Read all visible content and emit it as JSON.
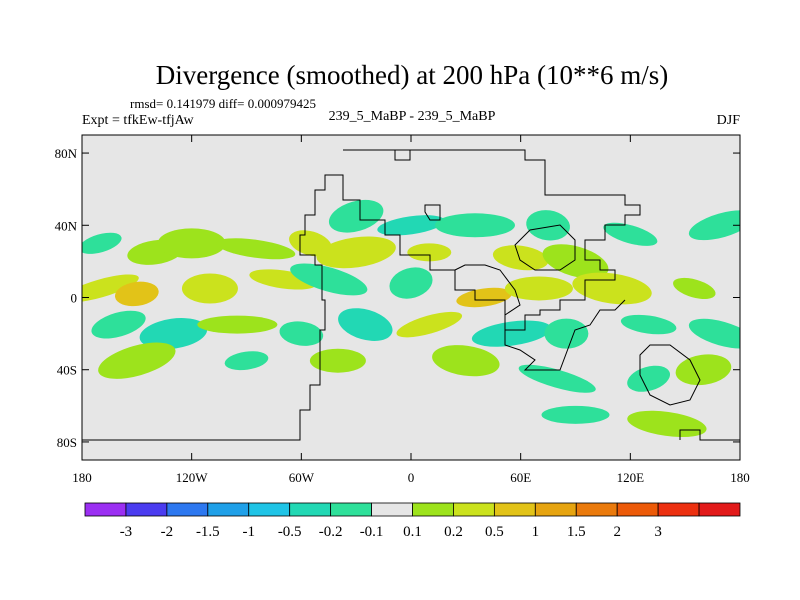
{
  "chart_data": {
    "type": "heatmap",
    "title": "Divergence (smoothed) at 200 hPa (10**6 m/s)",
    "stats_text": "rmsd= 0.141979 diff= 0.000979425",
    "subtitle_left": "Expt = tfkEw-tfjAw",
    "subtitle_center": "239_5_MaBP - 239_5_MaBP",
    "subtitle_right": "DJF",
    "xlim": [
      -180,
      180
    ],
    "ylim": [
      -90,
      90
    ],
    "x_ticks": [
      {
        "value": -180,
        "label": "180"
      },
      {
        "value": -120,
        "label": "120W"
      },
      {
        "value": -60,
        "label": "60W"
      },
      {
        "value": 0,
        "label": "0"
      },
      {
        "value": 60,
        "label": "60E"
      },
      {
        "value": 120,
        "label": "120E"
      },
      {
        "value": 180,
        "label": "180"
      }
    ],
    "y_ticks": [
      {
        "value": 80,
        "label": "80N"
      },
      {
        "value": 40,
        "label": "40N"
      },
      {
        "value": 0,
        "label": "0"
      },
      {
        "value": -40,
        "label": "40S"
      },
      {
        "value": -80,
        "label": "80S"
      }
    ],
    "colorbar": {
      "colors": [
        "#9b2ff2",
        "#4b3cf0",
        "#2d78f0",
        "#1fa0e8",
        "#1fc4e6",
        "#22d8b4",
        "#2ee09a",
        "#e6e6e6",
        "#9de31c",
        "#cbe21d",
        "#e2c318",
        "#e6a410",
        "#ea7a0c",
        "#ec5a08",
        "#ec3010",
        "#e21a1a"
      ],
      "labels": [
        "-3",
        "-2",
        "-1.5",
        "-1",
        "-0.5",
        "-0.2",
        "-0.1",
        "0.1",
        "0.2",
        "0.5",
        "1",
        "1.5",
        "2",
        "3"
      ]
    },
    "field_cells": [
      {
        "lon": -170,
        "lat": 30,
        "level": -0.15
      },
      {
        "lon": -140,
        "lat": 25,
        "level": 0.15
      },
      {
        "lon": -120,
        "lat": 30,
        "level": 0.15
      },
      {
        "lon": -85,
        "lat": 27,
        "level": 0.15
      },
      {
        "lon": -55,
        "lat": 30,
        "level": 0.3
      },
      {
        "lon": -30,
        "lat": 45,
        "level": -0.15
      },
      {
        "lon": 0,
        "lat": 40,
        "level": -0.3
      },
      {
        "lon": 35,
        "lat": 40,
        "level": -0.15
      },
      {
        "lon": 75,
        "lat": 40,
        "level": -0.15
      },
      {
        "lon": 120,
        "lat": 35,
        "level": -0.15
      },
      {
        "lon": 170,
        "lat": 40,
        "level": -0.15
      },
      {
        "lon": -30,
        "lat": 25,
        "level": 0.3
      },
      {
        "lon": 10,
        "lat": 25,
        "level": 0.3
      },
      {
        "lon": 60,
        "lat": 22,
        "level": 0.3
      },
      {
        "lon": 90,
        "lat": 20,
        "level": 0.15
      },
      {
        "lon": -170,
        "lat": 5,
        "level": 0.3
      },
      {
        "lon": -150,
        "lat": 2,
        "level": 0.7
      },
      {
        "lon": -110,
        "lat": 5,
        "level": 0.3
      },
      {
        "lon": -70,
        "lat": 10,
        "level": 0.3
      },
      {
        "lon": -45,
        "lat": 10,
        "level": -0.15
      },
      {
        "lon": 0,
        "lat": 8,
        "level": -0.15
      },
      {
        "lon": 40,
        "lat": 0,
        "level": 0.7
      },
      {
        "lon": 70,
        "lat": 5,
        "level": 0.3
      },
      {
        "lon": 110,
        "lat": 5,
        "level": 0.3
      },
      {
        "lon": 155,
        "lat": 5,
        "level": 0.15
      },
      {
        "lon": -160,
        "lat": -15,
        "level": -0.15
      },
      {
        "lon": -130,
        "lat": -20,
        "level": -0.3
      },
      {
        "lon": -95,
        "lat": -15,
        "level": 0.15
      },
      {
        "lon": -60,
        "lat": -20,
        "level": -0.15
      },
      {
        "lon": -25,
        "lat": -15,
        "level": -0.3
      },
      {
        "lon": 10,
        "lat": -15,
        "level": 0.3
      },
      {
        "lon": 55,
        "lat": -20,
        "level": -0.3
      },
      {
        "lon": 85,
        "lat": -20,
        "level": -0.15
      },
      {
        "lon": 130,
        "lat": -15,
        "level": -0.15
      },
      {
        "lon": 170,
        "lat": -20,
        "level": -0.15
      },
      {
        "lon": -150,
        "lat": -35,
        "level": 0.15
      },
      {
        "lon": -90,
        "lat": -35,
        "level": -0.15
      },
      {
        "lon": -40,
        "lat": -35,
        "level": 0.15
      },
      {
        "lon": 30,
        "lat": -35,
        "level": 0.15
      },
      {
        "lon": 80,
        "lat": -45,
        "level": -0.15
      },
      {
        "lon": 130,
        "lat": -45,
        "level": -0.15
      },
      {
        "lon": 160,
        "lat": -40,
        "level": 0.15
      },
      {
        "lon": 90,
        "lat": -65,
        "level": -0.15
      },
      {
        "lon": 140,
        "lat": -70,
        "level": 0.15
      }
    ]
  }
}
